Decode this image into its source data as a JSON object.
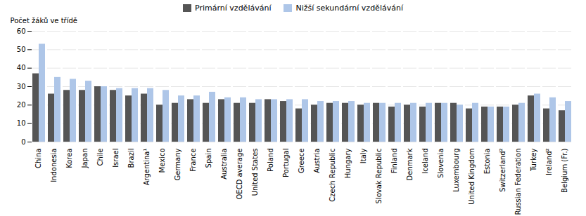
{
  "chart_data": {
    "type": "bar",
    "categories": [
      "China",
      "Indonesia",
      "Korea",
      "Japan",
      "Chile",
      "Israel",
      "Brazil",
      "Argentina¹",
      "Mexico",
      "Germany",
      "France",
      "Spain",
      "Australia",
      "OECD average",
      "United States",
      "Poland",
      "Portugal",
      "Greece",
      "Austria",
      "Czech Republic",
      "Hungary",
      "Italy",
      "Slovak Republic",
      "Finland",
      "Denmark",
      "Iceland",
      "Slovenia",
      "Luxembourg",
      "United Kingdom",
      "Estonia",
      "Switzerland²",
      "Russian Federation",
      "Turkey",
      "Ireland²",
      "Belgium (Fr.)"
    ],
    "series": [
      {
        "name": "Primární vzdělávání",
        "color": "#555555",
        "values": [
          37,
          26,
          28,
          28,
          30,
          28,
          25,
          26,
          20,
          21,
          23,
          21,
          23,
          21,
          21,
          23,
          22,
          18,
          20,
          21,
          21,
          20,
          21,
          19,
          20,
          19,
          21,
          21,
          18,
          19,
          19,
          20,
          25,
          18,
          17
        ]
      },
      {
        "name": "Nižší sekundární vzdělávání",
        "color": "#aec6e8",
        "values": [
          53,
          35,
          34,
          33,
          30,
          29,
          29,
          29,
          28,
          25,
          25,
          27,
          24,
          24,
          23,
          23,
          23,
          23,
          22,
          22,
          22,
          21,
          21,
          21,
          21,
          21,
          21,
          20,
          21,
          19,
          19,
          21,
          26,
          24,
          22
        ]
      }
    ],
    "y_label": "Počet žáků ve třídě",
    "ylim": [
      0,
      60
    ],
    "yticks": [
      0,
      10,
      20,
      30,
      40,
      50,
      60
    ],
    "grid": true,
    "legend": "top"
  }
}
